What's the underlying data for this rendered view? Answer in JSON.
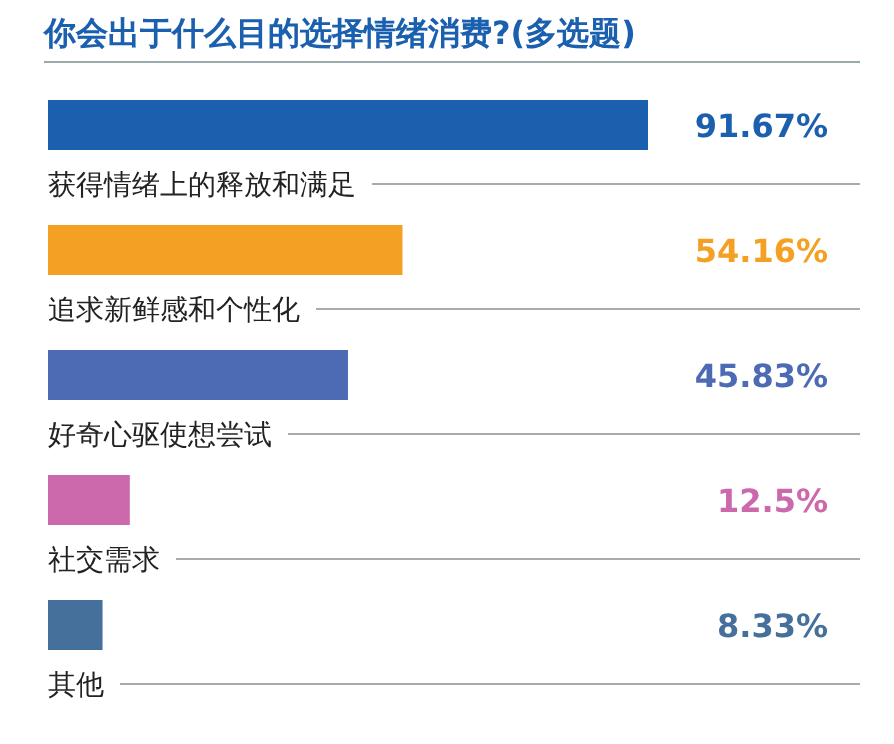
{
  "chart_data": {
    "type": "bar",
    "orientation": "horizontal",
    "title": "你会出于什么目的选择情绪消费?(多选题)",
    "categories": [
      "获得情绪上的释放和满足",
      "追求新鲜感和个性化",
      "好奇心驱使想尝试",
      "社交需求",
      "其他"
    ],
    "values": [
      91.67,
      54.16,
      45.83,
      12.5,
      8.33
    ],
    "colors": [
      "#1b5faf",
      "#f4a023",
      "#4d6bb5",
      "#cc68ac",
      "#46709c"
    ],
    "value_labels": [
      "91.67%",
      "54.16%",
      "45.83%",
      "12.5%",
      "8.33%"
    ],
    "grid": "y"
  }
}
